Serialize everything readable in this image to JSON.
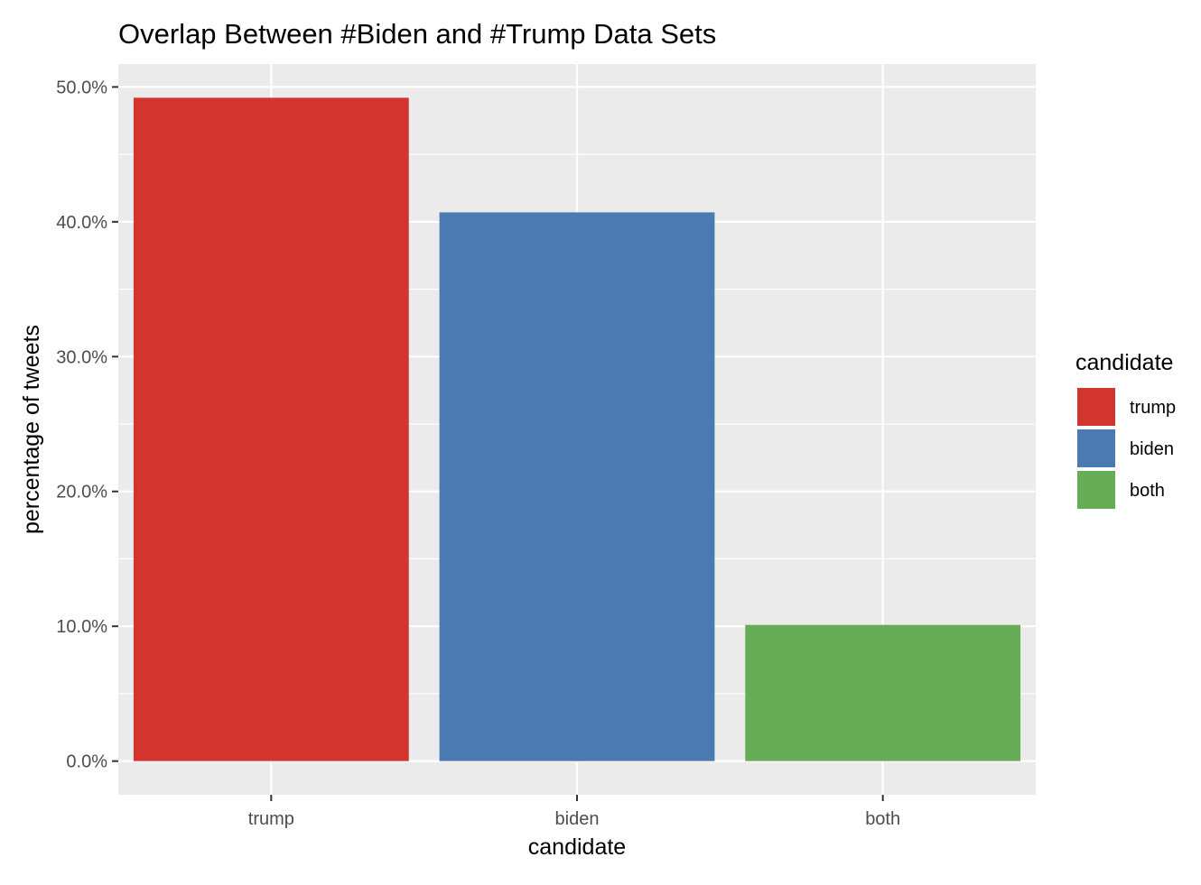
{
  "chart_data": {
    "type": "bar",
    "title": "Overlap Between #Biden and #Trump Data Sets",
    "xlabel": "candidate",
    "ylabel": "percentage of tweets",
    "categories": [
      "trump",
      "biden",
      "both"
    ],
    "values": [
      0.492,
      0.407,
      0.101
    ],
    "colors": [
      "#d2352d",
      "#4a7ab1",
      "#67ad57"
    ],
    "ylim": [
      -0.025,
      0.517
    ],
    "yticks": [
      0,
      0.1,
      0.2,
      0.3,
      0.4,
      0.5
    ],
    "ytick_labels": [
      "0.0%",
      "10.0%",
      "20.0%",
      "30.0%",
      "40.0%",
      "50.0%"
    ],
    "grid": true,
    "legend": {
      "title": "candidate",
      "position": "right",
      "entries": [
        "trump",
        "biden",
        "both"
      ]
    },
    "panel_background": "#ebebeb",
    "grid_color": "#ffffff"
  }
}
